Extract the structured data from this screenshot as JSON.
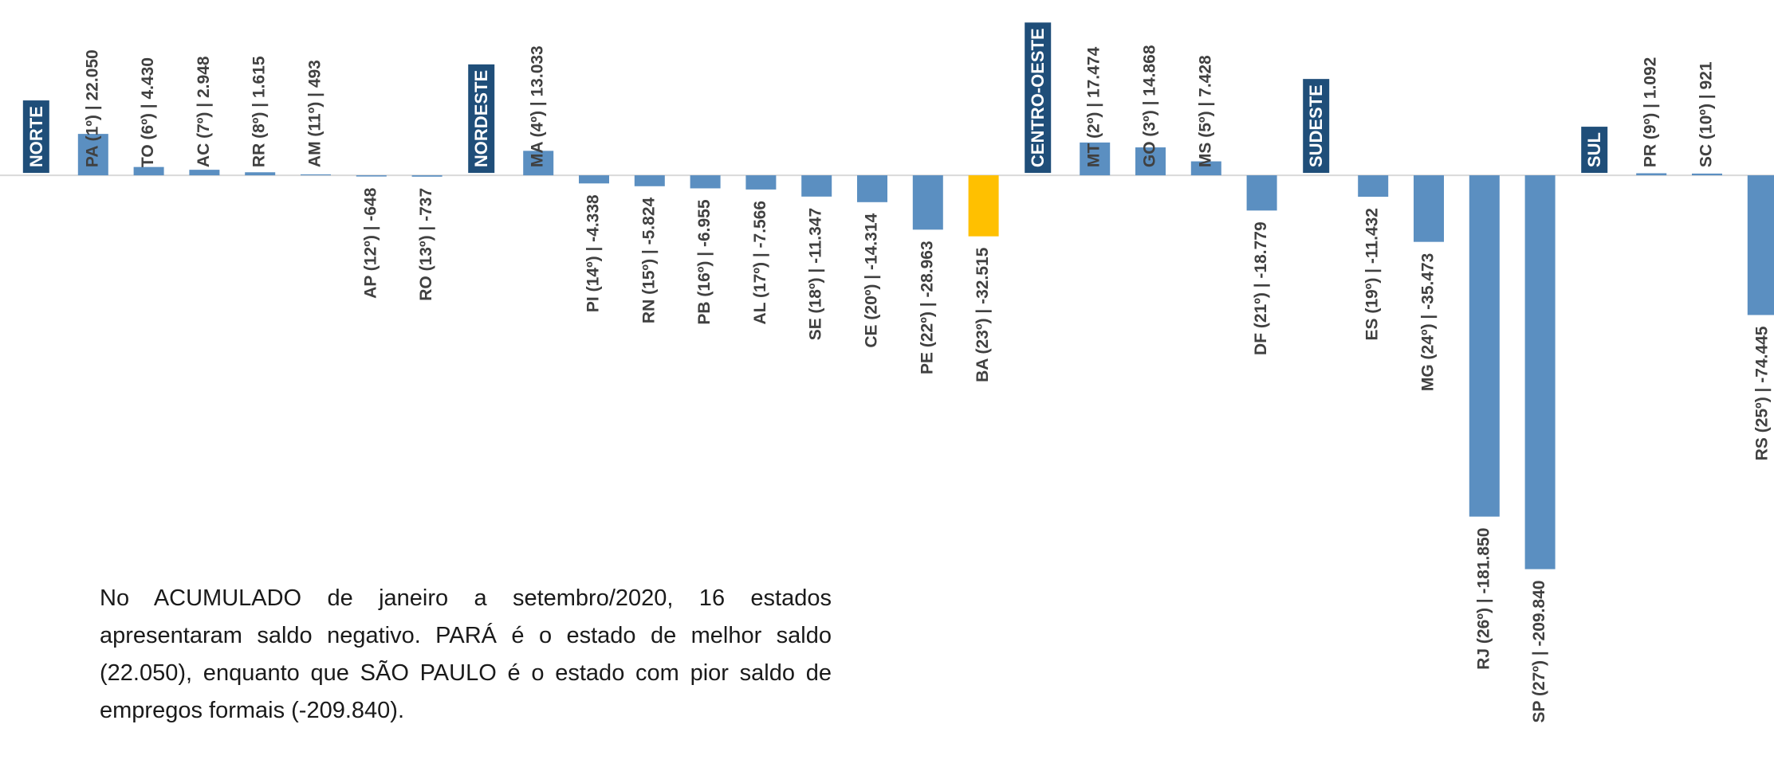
{
  "chart_data": {
    "type": "bar",
    "categories": [
      "NORTE",
      "PA (1º) | 22.050",
      "TO (6º) | 4.430",
      "AC (7º) | 2.948",
      "RR (8º) | 1.615",
      "AM (11º) | 493",
      "AP (12º) | -648",
      "RO (13º) | -737",
      "NORDESTE",
      "MA (4º) | 13.033",
      "PI (14º) | -4.338",
      "RN (15º) | -5.824",
      "PB (16º) | -6.955",
      "AL (17º) | -7.566",
      "SE (18º) | -11.347",
      "CE (20º) | -14.314",
      "PE (22º) | -28.963",
      "BA (23º) | -32.515",
      "CENTRO-OESTE",
      "MT (2º) | 17.474",
      "GO (3º) | 14.868",
      "MS (5º) | 7.428",
      "DF (21º) | -18.779",
      "SUDESTE",
      "ES (19º) | -11.432",
      "MG (24º) | -35.473",
      "RJ (26º) | -181.850",
      "SP (27º) | -209.840",
      "SUL",
      "PR (9º) | 1.092",
      "SC (10º) | 921",
      "RS (25º) | -74.445"
    ],
    "values": [
      null,
      22050,
      4430,
      2948,
      1615,
      493,
      -648,
      -737,
      null,
      13033,
      -4338,
      -5824,
      -6955,
      -7566,
      -11347,
      -14314,
      -28963,
      -32515,
      null,
      17474,
      14868,
      7428,
      -18779,
      null,
      -11432,
      -35473,
      -181850,
      -209840,
      null,
      1092,
      921,
      -74445
    ],
    "colors": [
      null,
      "#5b8fc1",
      "#5b8fc1",
      "#5b8fc1",
      "#5b8fc1",
      "#5b8fc1",
      "#5b8fc1",
      "#5b8fc1",
      null,
      "#5b8fc1",
      "#5b8fc1",
      "#5b8fc1",
      "#5b8fc1",
      "#5b8fc1",
      "#5b8fc1",
      "#5b8fc1",
      "#5b8fc1",
      "#ffc000",
      null,
      "#5b8fc1",
      "#5b8fc1",
      "#5b8fc1",
      "#5b8fc1",
      null,
      "#5b8fc1",
      "#5b8fc1",
      "#5b8fc1",
      "#5b8fc1",
      null,
      "#5b8fc1",
      "#5b8fc1",
      "#5b8fc1"
    ],
    "region_color": "#1f4e79",
    "ylim": [
      -300000,
      90000
    ],
    "annotation": "No ACUMULADO de janeiro a setembro/2020, 16 estados apresentaram saldo negativo. PARÁ é o estado de melhor saldo (22.050), enquanto que SÃO PAULO é o estado com pior saldo de empregos formais (-209.840)."
  }
}
